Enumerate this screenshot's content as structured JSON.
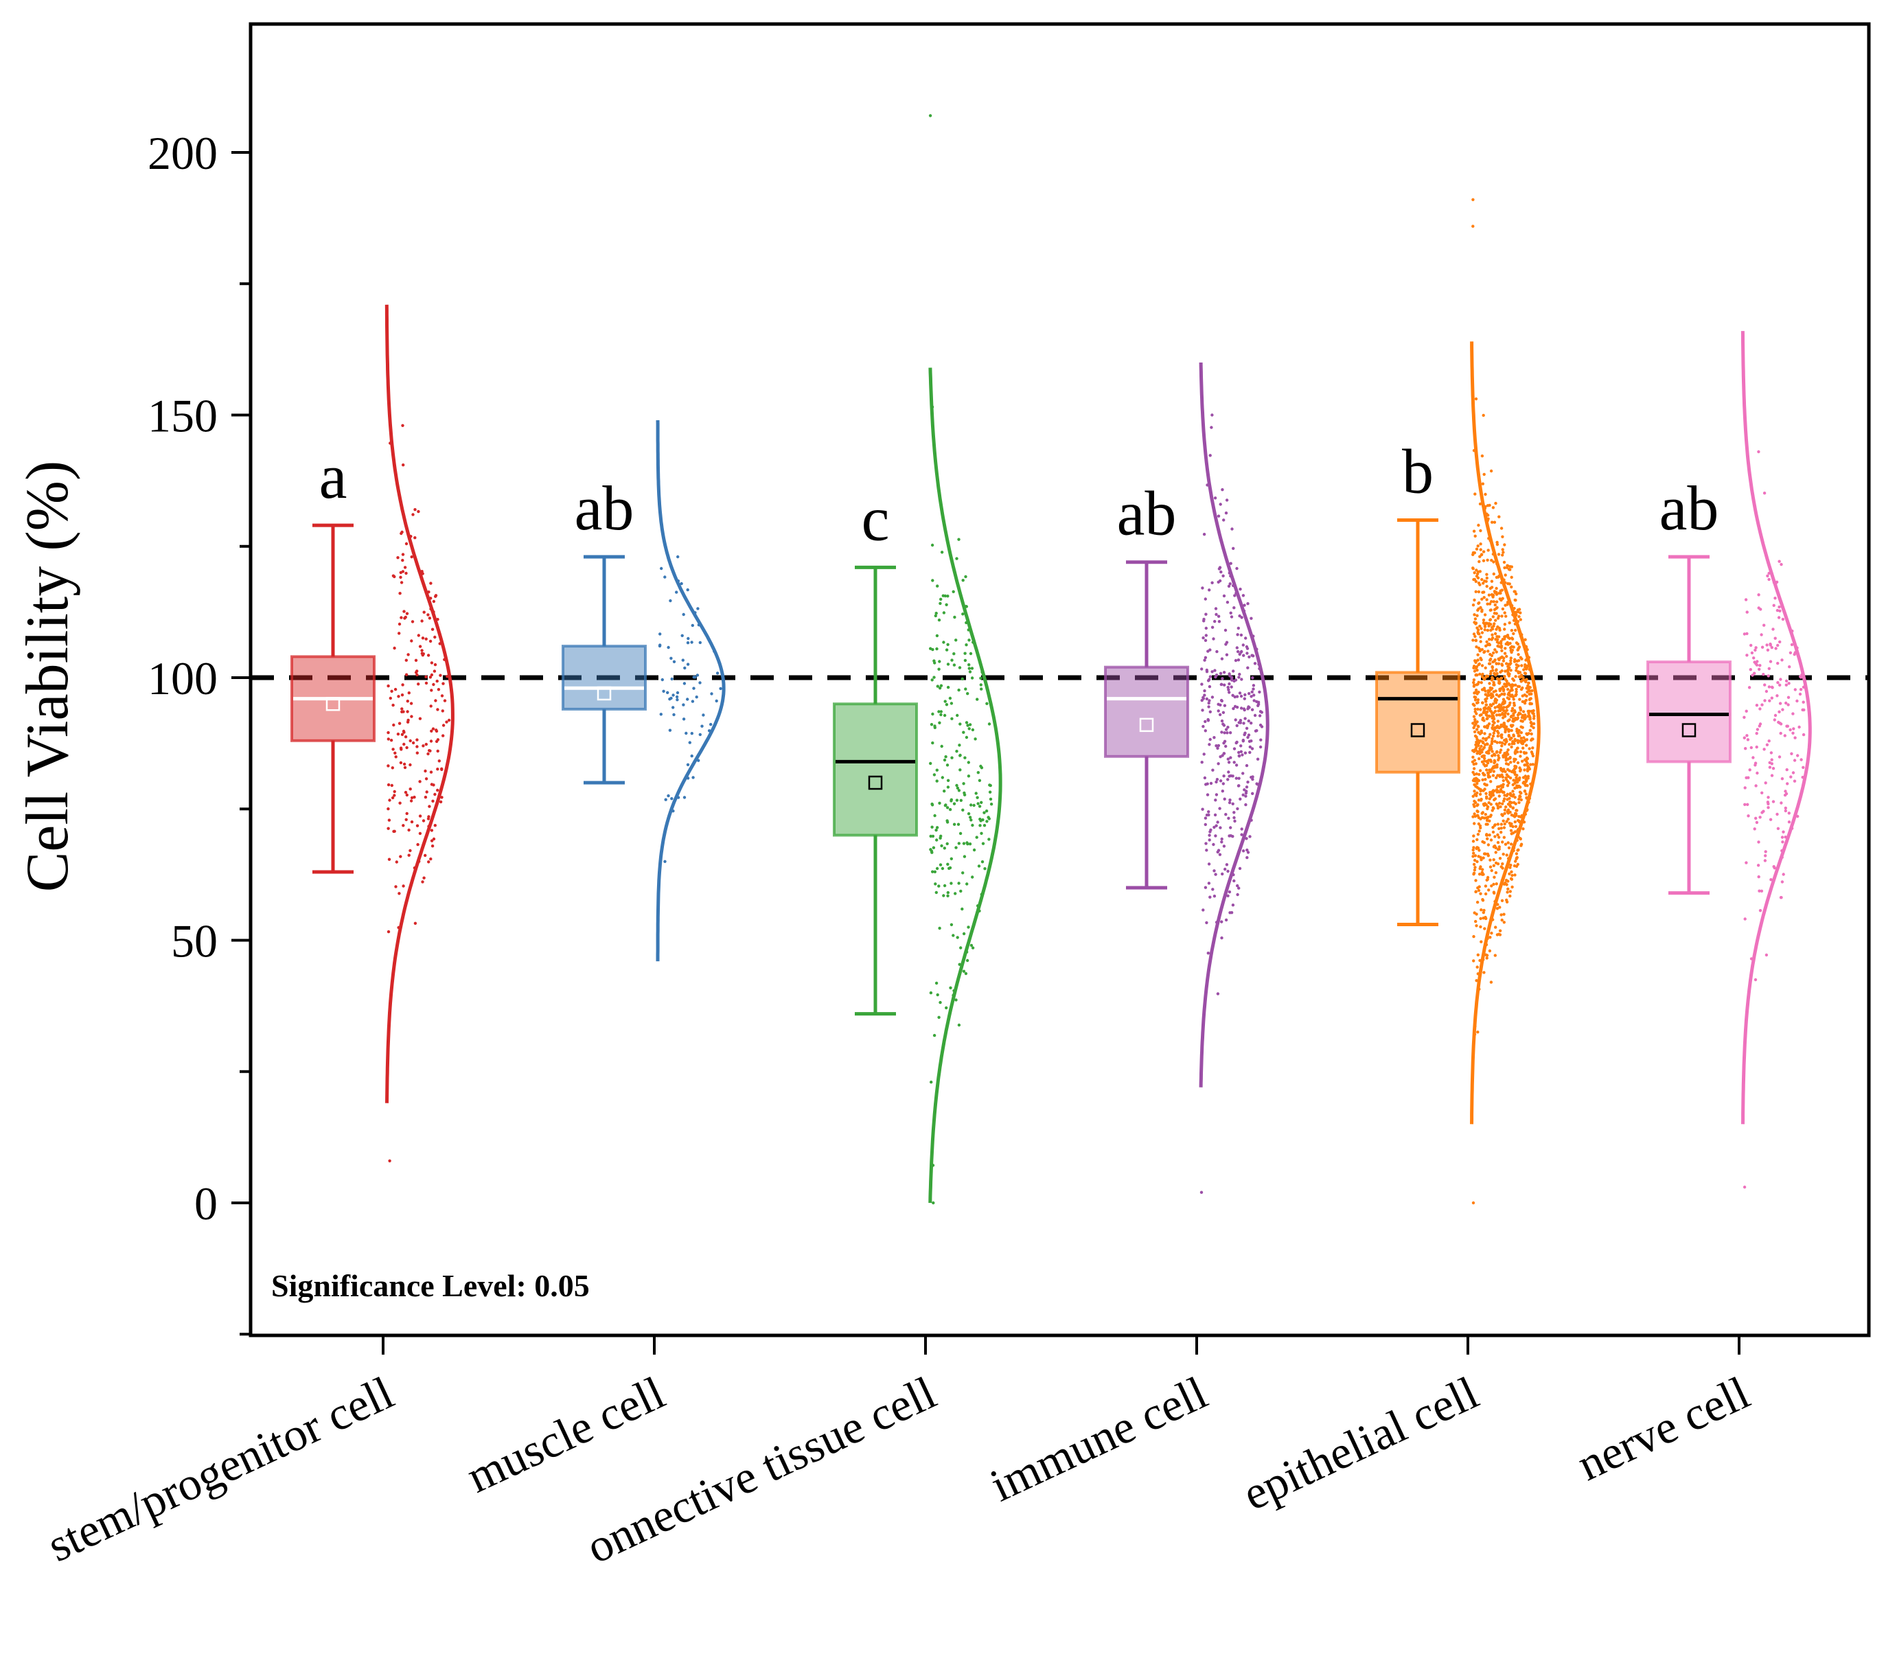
{
  "chart_data": {
    "type": "raincloud",
    "ylabel": "Cell Viability (%)",
    "xlabel": "",
    "ylim": [
      -25,
      225
    ],
    "yticks": [
      0,
      50,
      100,
      150,
      200
    ],
    "reference_line": {
      "y": 100,
      "style": "dashed",
      "color": "#000000"
    },
    "annotation": "Significance Level: 0.05",
    "categories": [
      "stem/progenitor cell",
      "muscle cell",
      "onnective tissue cell",
      "immune cell",
      "epithelial cell",
      "nerve cell"
    ],
    "groups": [
      {
        "name": "stem/progenitor cell",
        "letter": "a",
        "color": "#d62728",
        "whisker_low": 63,
        "q1": 88,
        "median": 96,
        "q3": 104,
        "whisker_high": 129,
        "mean": 95,
        "median_line_color": "#ffffff",
        "mean_marker_color": "#ffffff",
        "curve": {
          "mu": 93,
          "sigma": 23,
          "y_min": 19,
          "y_max": 171,
          "peak": 97
        },
        "n_points": 230,
        "point_min": 8,
        "point_max": 148
      },
      {
        "name": "muscle cell",
        "letter": "ab",
        "color": "#3a78b5",
        "whisker_low": 80,
        "q1": 94,
        "median": 98,
        "q3": 106,
        "whisker_high": 123,
        "mean": 97,
        "median_line_color": "#ffffff",
        "mean_marker_color": "#ffffff",
        "curve": {
          "mu": 98,
          "sigma": 13,
          "y_min": 46,
          "y_max": 149,
          "peak": 96
        },
        "n_points": 80,
        "point_min": 65,
        "point_max": 123
      },
      {
        "name": "onnective tissue cell",
        "letter": "c",
        "color": "#3aa53a",
        "whisker_low": 36,
        "q1": 70,
        "median": 84,
        "q3": 95,
        "whisker_high": 121,
        "mean": 80,
        "median_line_color": "#000000",
        "mean_marker_color": "#000000",
        "curve": {
          "mu": 80,
          "sigma": 28,
          "y_min": 0,
          "y_max": 159,
          "peak": 92
        },
        "n_points": 260,
        "point_min": 0,
        "point_max": 207
      },
      {
        "name": "immune cell",
        "letter": "ab",
        "color": "#9b4ea6",
        "whisker_low": 60,
        "q1": 85,
        "median": 96,
        "q3": 102,
        "whisker_high": 122,
        "mean": 91,
        "median_line_color": "#ffffff",
        "mean_marker_color": "#ffffff",
        "curve": {
          "mu": 91,
          "sigma": 23,
          "y_min": 22,
          "y_max": 160,
          "peak": 97
        },
        "n_points": 380,
        "point_min": 2,
        "point_max": 150
      },
      {
        "name": "epithelial cell",
        "letter": "b",
        "color": "#ff7f0e",
        "whisker_low": 53,
        "q1": 82,
        "median": 96,
        "q3": 101,
        "whisker_high": 130,
        "mean": 90,
        "median_line_color": "#000000",
        "mean_marker_color": "#000000",
        "curve": {
          "mu": 90,
          "sigma": 23,
          "y_min": 15,
          "y_max": 164,
          "peak": 96
        },
        "n_points": 1500,
        "point_min": 0,
        "point_max": 191
      },
      {
        "name": "nerve cell",
        "letter": "ab",
        "color": "#ee72bd",
        "whisker_low": 59,
        "q1": 84,
        "median": 93,
        "q3": 103,
        "whisker_high": 123,
        "mean": 90,
        "median_line_color": "#000000",
        "mean_marker_color": "#000000",
        "curve": {
          "mu": 90,
          "sigma": 23,
          "y_min": 15,
          "y_max": 166,
          "peak": 96
        },
        "n_points": 220,
        "point_min": 3,
        "point_max": 143
      }
    ]
  }
}
